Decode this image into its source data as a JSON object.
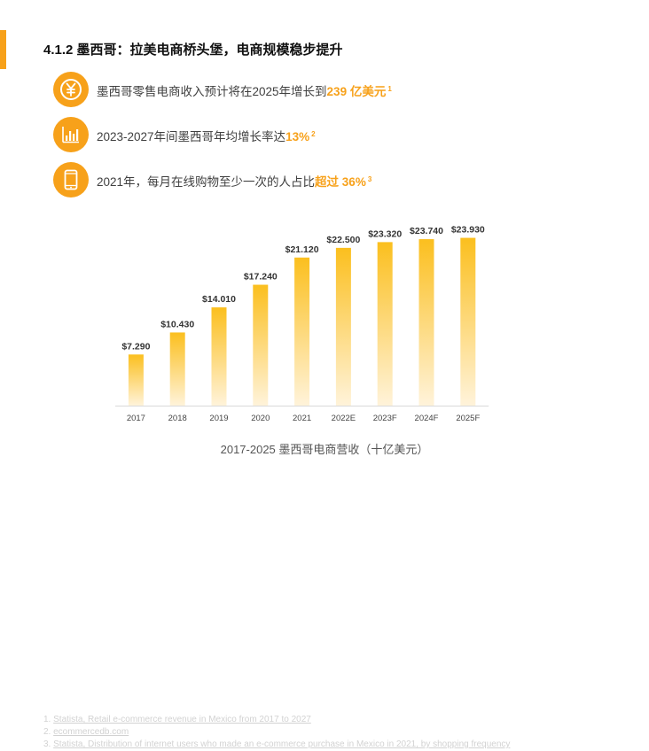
{
  "section": {
    "title": "4.1.2 墨西哥：拉美电商桥头堡，电商规模稳步提升"
  },
  "bullets": [
    {
      "icon": "yuan-coin-icon",
      "text": "墨西哥零售电商收入预计将在2025年增长到",
      "highlight": "239 亿美元",
      "sup": "1"
    },
    {
      "icon": "bar-chart-icon",
      "text": "2023-2027年间墨西哥年均增长率达",
      "highlight": "13%",
      "sup": "2"
    },
    {
      "icon": "mobile-phone-icon",
      "text": "2021年，每月在线购物至少一次的人占比",
      "highlight": "超过 36%",
      "sup": "3"
    }
  ],
  "chart_data": {
    "type": "bar",
    "categories": [
      "2017",
      "2018",
      "2019",
      "2020",
      "2021",
      "2022E",
      "2023F",
      "2024F",
      "2025F"
    ],
    "values": [
      7.29,
      10.43,
      14.01,
      17.24,
      21.12,
      22.5,
      23.32,
      23.74,
      23.93
    ],
    "data_labels": [
      "$7.290",
      "$10.430",
      "$14.010",
      "$17.240",
      "$21.120",
      "$22.500",
      "$23.320",
      "$23.740",
      "$23.930"
    ],
    "title": "2017-2025 墨西哥电商营收（十亿美元）",
    "xlabel": "",
    "ylabel": "",
    "ylim": [
      0,
      24
    ],
    "grid": false,
    "bar_color_top": "#fbbf1e",
    "bar_color_bottom": "#fff3da"
  },
  "footnotes": [
    {
      "num": "1.",
      "text": "Statista, Retail e-commerce revenue in Mexico from 2017 to 2027"
    },
    {
      "num": "2.",
      "text": "ecommercedb.com"
    },
    {
      "num": "3.",
      "text": "Statista, Distribution of internet users who made an e-commerce purchase in Mexico in 2021, by shopping frequency"
    }
  ],
  "colors": {
    "accent": "#f7a11a"
  }
}
